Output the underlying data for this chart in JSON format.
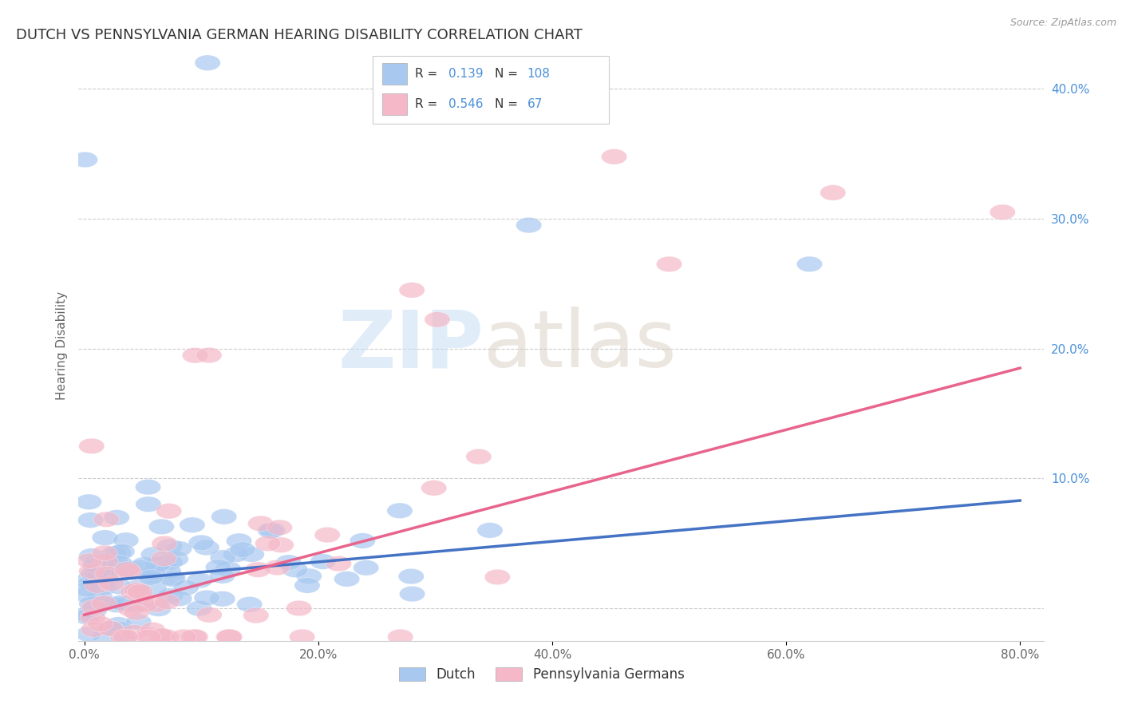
{
  "title": "DUTCH VS PENNSYLVANIA GERMAN HEARING DISABILITY CORRELATION CHART",
  "source": "Source: ZipAtlas.com",
  "ylabel": "Hearing Disability",
  "xlim": [
    -0.005,
    0.82
  ],
  "ylim": [
    -0.025,
    0.43
  ],
  "xtick_labels": [
    "0.0%",
    "20.0%",
    "40.0%",
    "60.0%",
    "80.0%"
  ],
  "xtick_vals": [
    0.0,
    0.2,
    0.4,
    0.6,
    0.8
  ],
  "ytick_labels": [
    "",
    "10.0%",
    "20.0%",
    "30.0%",
    "40.0%"
  ],
  "ytick_vals": [
    0.0,
    0.1,
    0.2,
    0.3,
    0.4
  ],
  "dutch_color": "#a8c8f0",
  "dutch_line_color": "#4472c4",
  "penn_color": "#f4b8c8",
  "penn_line_color": "#e8648c",
  "dutch_R": 0.139,
  "dutch_N": 108,
  "penn_R": 0.546,
  "penn_N": 67,
  "background_color": "#ffffff",
  "grid_color": "#cccccc",
  "title_color": "#333333",
  "legend_dutch_label": "Dutch",
  "legend_penn_label": "Pennsylvania Germans",
  "dutch_line_x0": 0.0,
  "dutch_line_y0": 0.02,
  "dutch_line_x1": 0.8,
  "dutch_line_y1": 0.083,
  "penn_line_x0": 0.0,
  "penn_line_y0": -0.005,
  "penn_line_x1": 0.8,
  "penn_line_y1": 0.185
}
